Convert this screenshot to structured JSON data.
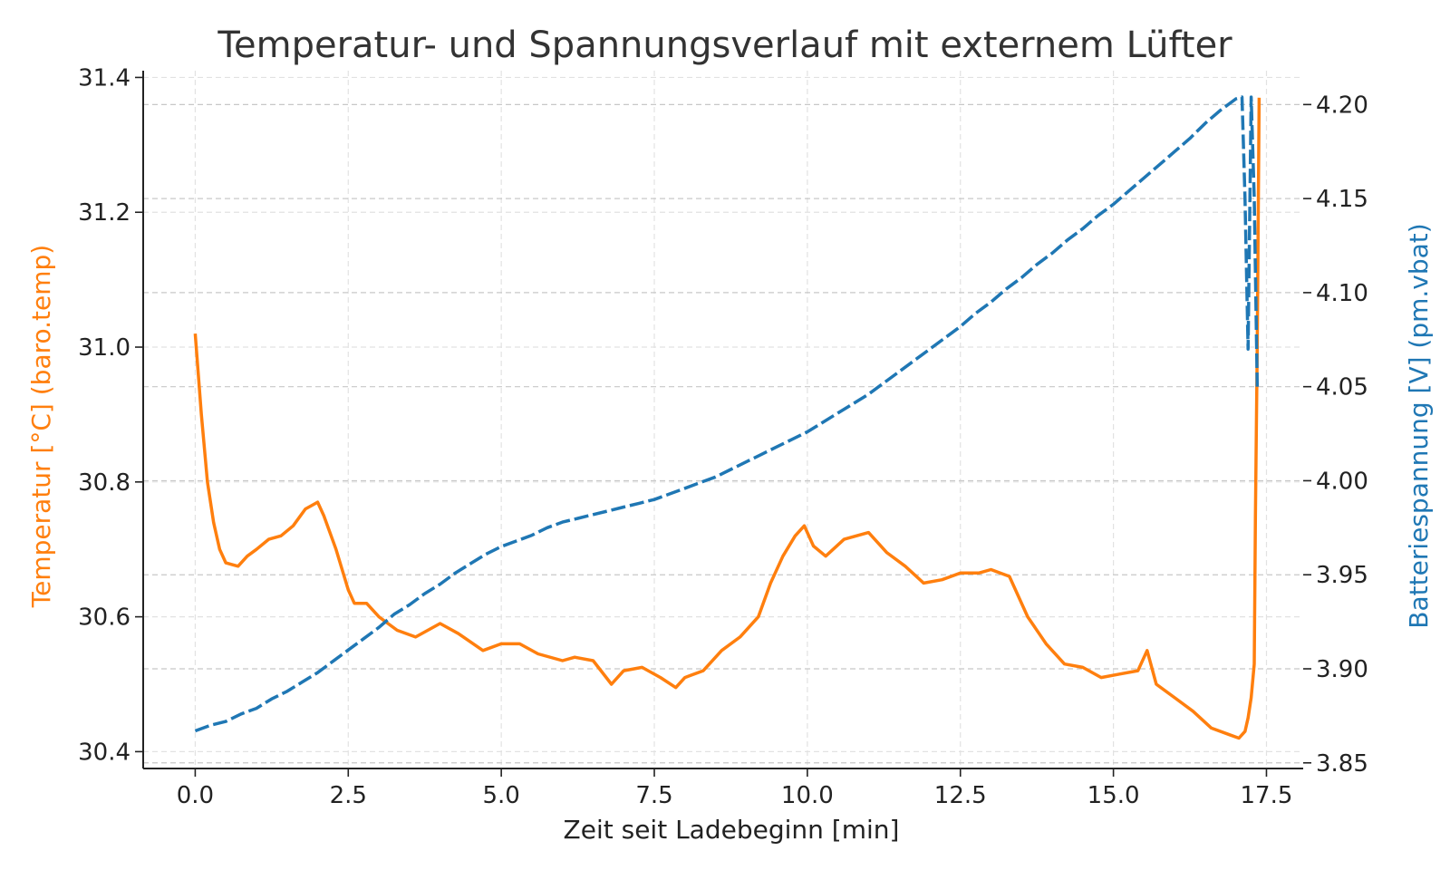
{
  "chart_data": {
    "type": "line",
    "title": "Temperatur- und Spannungsverlauf mit externem Lüfter",
    "xlabel": "Zeit seit Ladebeginn [min]",
    "ylabel": "Temperatur [°C] (baro.temp)",
    "y2label": "Batteriespannung [V] (pm.vbat)",
    "xlim": [
      -0.85,
      18.1
    ],
    "ylim": [
      30.375,
      31.41
    ],
    "y2lim": [
      3.847,
      4.218
    ],
    "x_ticks": [
      0.0,
      2.5,
      5.0,
      7.5,
      10.0,
      12.5,
      15.0,
      17.5
    ],
    "x_tick_labels": [
      "0.0",
      "2.5",
      "5.0",
      "7.5",
      "10.0",
      "12.5",
      "15.0",
      "17.5"
    ],
    "y_ticks": [
      30.4,
      30.6,
      30.8,
      31.0,
      31.2,
      31.4
    ],
    "y_tick_labels": [
      "30.4",
      "30.6",
      "30.8",
      "31.0",
      "31.2",
      "31.4"
    ],
    "y2_ticks": [
      3.85,
      3.9,
      3.95,
      4.0,
      4.05,
      4.1,
      4.15,
      4.2
    ],
    "y2_tick_labels": [
      "3.85",
      "3.90",
      "3.95",
      "4.00",
      "4.05",
      "4.10",
      "4.15",
      "4.20"
    ],
    "grid": true,
    "series": [
      {
        "axis": "left",
        "color": "#ff7f0e",
        "style": "solid",
        "x": [
          0.0,
          0.1,
          0.2,
          0.3,
          0.4,
          0.5,
          0.7,
          0.85,
          1.0,
          1.2,
          1.4,
          1.6,
          1.8,
          1.9,
          2.0,
          2.1,
          2.3,
          2.5,
          2.6,
          2.8,
          3.0,
          3.3,
          3.6,
          4.0,
          4.3,
          4.7,
          5.0,
          5.3,
          5.6,
          6.0,
          6.2,
          6.5,
          6.8,
          7.0,
          7.3,
          7.6,
          7.85,
          8.0,
          8.3,
          8.6,
          8.9,
          9.2,
          9.4,
          9.6,
          9.8,
          9.95,
          10.1,
          10.3,
          10.6,
          10.8,
          11.0,
          11.3,
          11.6,
          11.9,
          12.2,
          12.5,
          12.8,
          13.0,
          13.3,
          13.6,
          13.9,
          14.2,
          14.5,
          14.8,
          15.1,
          15.4,
          15.55,
          15.7,
          16.0,
          16.3,
          16.6,
          16.9,
          17.05,
          17.15,
          17.2,
          17.25,
          17.3,
          17.32,
          17.35,
          17.38
        ],
        "y": [
          31.02,
          30.9,
          30.8,
          30.74,
          30.7,
          30.68,
          30.675,
          30.69,
          30.7,
          30.715,
          30.72,
          30.735,
          30.76,
          30.765,
          30.77,
          30.75,
          30.7,
          30.64,
          30.62,
          30.62,
          30.6,
          30.58,
          30.57,
          30.59,
          30.575,
          30.55,
          30.56,
          30.56,
          30.545,
          30.535,
          30.54,
          30.535,
          30.5,
          30.52,
          30.525,
          30.51,
          30.495,
          30.51,
          30.52,
          30.55,
          30.57,
          30.6,
          30.65,
          30.69,
          30.72,
          30.735,
          30.705,
          30.69,
          30.715,
          30.72,
          30.725,
          30.695,
          30.675,
          30.65,
          30.655,
          30.665,
          30.665,
          30.67,
          30.66,
          30.6,
          30.56,
          30.53,
          30.525,
          30.51,
          30.515,
          30.52,
          30.55,
          30.5,
          30.48,
          30.46,
          30.435,
          30.425,
          30.42,
          30.43,
          30.45,
          30.48,
          30.53,
          30.75,
          31.0,
          31.37
        ]
      },
      {
        "axis": "right",
        "color": "#1f77b4",
        "style": "dashed",
        "x": [
          0.0,
          0.25,
          0.5,
          0.75,
          1.0,
          1.25,
          1.5,
          1.75,
          2.0,
          2.25,
          2.5,
          2.75,
          3.0,
          3.25,
          3.5,
          3.75,
          4.0,
          4.25,
          4.5,
          4.75,
          5.0,
          5.25,
          5.5,
          5.75,
          6.0,
          6.25,
          6.5,
          6.75,
          7.0,
          7.25,
          7.5,
          7.75,
          8.0,
          8.25,
          8.5,
          8.75,
          9.0,
          9.25,
          9.5,
          9.75,
          10.0,
          10.25,
          10.5,
          10.75,
          11.0,
          11.25,
          11.5,
          11.75,
          12.0,
          12.25,
          12.5,
          12.75,
          13.0,
          13.25,
          13.5,
          13.75,
          14.0,
          14.25,
          14.5,
          14.75,
          15.0,
          15.25,
          15.5,
          15.75,
          16.0,
          16.25,
          16.5,
          16.75,
          17.0,
          17.1,
          17.15,
          17.2,
          17.25,
          17.3,
          17.35
        ],
        "y": [
          3.867,
          3.87,
          3.872,
          3.876,
          3.879,
          3.884,
          3.888,
          3.893,
          3.898,
          3.904,
          3.91,
          3.916,
          3.922,
          3.929,
          3.934,
          3.94,
          3.945,
          3.951,
          3.956,
          3.961,
          3.965,
          3.968,
          3.971,
          3.975,
          3.978,
          3.98,
          3.982,
          3.984,
          3.986,
          3.988,
          3.99,
          3.993,
          3.996,
          3.999,
          4.002,
          4.006,
          4.01,
          4.014,
          4.018,
          4.022,
          4.026,
          4.031,
          4.036,
          4.041,
          4.046,
          4.052,
          4.058,
          4.064,
          4.07,
          4.076,
          4.082,
          4.089,
          4.095,
          4.102,
          4.108,
          4.115,
          4.121,
          4.128,
          4.134,
          4.141,
          4.147,
          4.154,
          4.161,
          4.168,
          4.175,
          4.182,
          4.19,
          4.197,
          4.203,
          4.204,
          4.15,
          4.07,
          4.204,
          4.15,
          4.05
        ]
      }
    ]
  }
}
